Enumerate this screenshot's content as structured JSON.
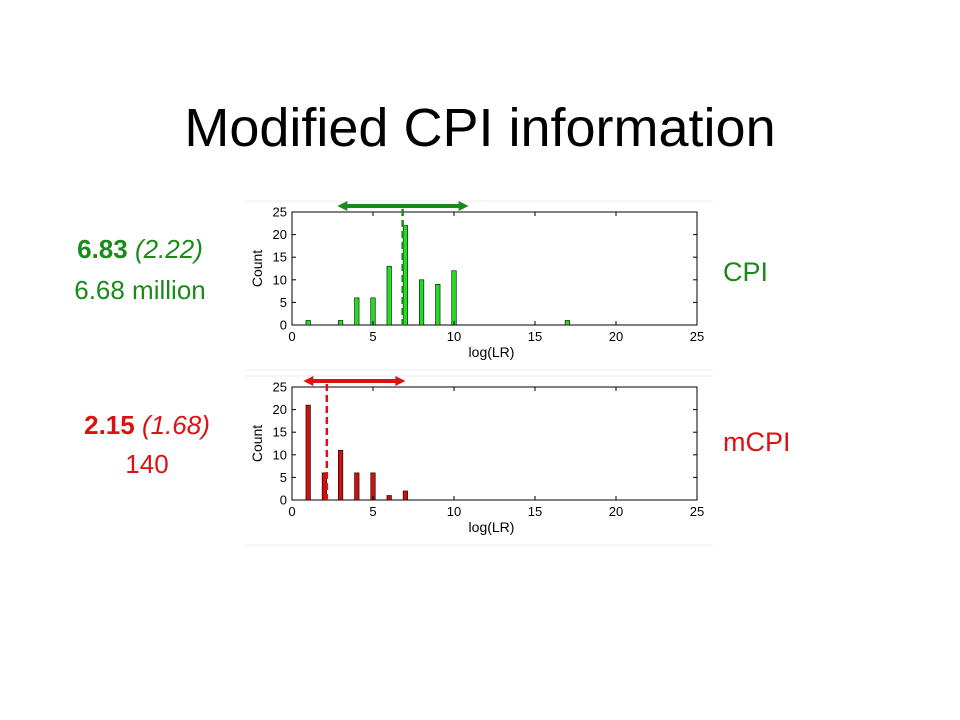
{
  "title": "Modified CPI information",
  "colors": {
    "cpi": "#1a8a1a",
    "cpi_bar": "#22dd22",
    "mcpi": "#dd1111",
    "mcpi_bar": "#cc1111"
  },
  "panels": [
    {
      "label": "CPI",
      "stat_mean": "6.83",
      "stat_sd": "(2.22)",
      "stat_value": "6.68 million"
    },
    {
      "label": "mCPI",
      "stat_mean": "2.15",
      "stat_sd": "(1.68)",
      "stat_value": "140"
    }
  ],
  "chart_data": [
    {
      "type": "bar",
      "xlabel": "log(LR)",
      "ylabel": "Count",
      "xlim": [
        0,
        25
      ],
      "ylim": [
        0,
        25
      ],
      "xticks": [
        0,
        5,
        10,
        15,
        20,
        25
      ],
      "yticks": [
        0,
        5,
        10,
        15,
        20,
        25
      ],
      "x": [
        1,
        3,
        4,
        5,
        6,
        7,
        8,
        9,
        10,
        17
      ],
      "values": [
        1,
        1,
        6,
        6,
        13,
        22,
        10,
        9,
        12,
        1
      ],
      "mean_line": 6.83,
      "range_arrow": [
        2.8,
        10.9
      ]
    },
    {
      "type": "bar",
      "xlabel": "log(LR)",
      "ylabel": "Count",
      "xlim": [
        0,
        25
      ],
      "ylim": [
        0,
        25
      ],
      "xticks": [
        0,
        5,
        10,
        15,
        20,
        25
      ],
      "yticks": [
        0,
        5,
        10,
        15,
        20,
        25
      ],
      "x": [
        1,
        2,
        3,
        4,
        5,
        6,
        7
      ],
      "values": [
        21,
        6,
        11,
        6,
        6,
        1,
        2
      ],
      "mean_line": 2.15,
      "range_arrow": [
        0.7,
        7.0
      ]
    }
  ]
}
